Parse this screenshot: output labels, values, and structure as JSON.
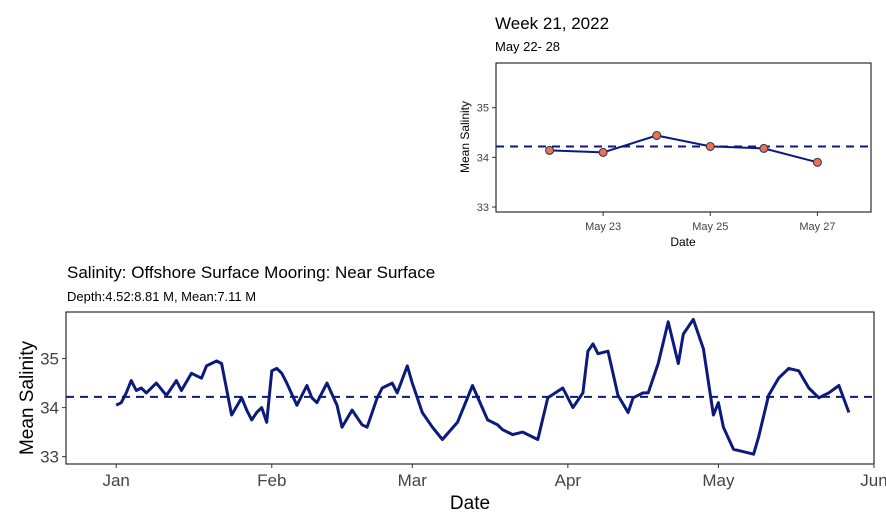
{
  "chart_data": [
    {
      "type": "line",
      "title": "Week 21, 2022",
      "subtitle": "May 22- 28",
      "xlabel": "Date",
      "ylabel": "Mean Salinity",
      "x": [
        "2022-05-22",
        "2022-05-23",
        "2022-05-24",
        "2022-05-25",
        "2022-05-26",
        "2022-05-27"
      ],
      "values": [
        34.14,
        34.1,
        34.44,
        34.22,
        34.18,
        33.9
      ],
      "reference_line": 34.22,
      "xlim": [
        "2022-05-21",
        "2022-05-28"
      ],
      "ylim": [
        32.9,
        35.9
      ],
      "x_ticks": [
        {
          "x": "2022-05-23",
          "label": "May 23"
        },
        {
          "x": "2022-05-25",
          "label": "May 25"
        },
        {
          "x": "2022-05-27",
          "label": "May 27"
        }
      ],
      "y_ticks": [
        33,
        34,
        35
      ],
      "grid": false,
      "legend": "none",
      "line_color": "#0c1a7c",
      "marker_color": "#e8705e",
      "reference_line_color": "#0c1a7c"
    },
    {
      "type": "line",
      "title": "Salinity: Offshore Surface Mooring: Near Surface",
      "subtitle": "Depth:4.52:8.81 M, Mean:7.11 M",
      "xlabel": "Date",
      "ylabel": "Mean Salinity",
      "x": [
        "2022-01-01",
        "2022-01-02",
        "2022-01-03",
        "2022-01-04",
        "2022-01-05",
        "2022-01-06",
        "2022-01-07",
        "2022-01-09",
        "2022-01-11",
        "2022-01-13",
        "2022-01-14",
        "2022-01-16",
        "2022-01-18",
        "2022-01-19",
        "2022-01-21",
        "2022-01-22",
        "2022-01-24",
        "2022-01-26",
        "2022-01-27",
        "2022-01-28",
        "2022-01-29",
        "2022-01-30",
        "2022-01-31",
        "2022-02-01",
        "2022-02-02",
        "2022-02-03",
        "2022-02-04",
        "2022-02-06",
        "2022-02-08",
        "2022-02-09",
        "2022-02-10",
        "2022-02-12",
        "2022-02-14",
        "2022-02-15",
        "2022-02-17",
        "2022-02-19",
        "2022-02-20",
        "2022-02-22",
        "2022-02-23",
        "2022-02-25",
        "2022-02-26",
        "2022-02-28",
        "2022-03-01",
        "2022-03-03",
        "2022-03-05",
        "2022-03-07",
        "2022-03-10",
        "2022-03-13",
        "2022-03-16",
        "2022-03-18",
        "2022-03-19",
        "2022-03-21",
        "2022-03-23",
        "2022-03-26",
        "2022-03-28",
        "2022-03-31",
        "2022-04-02",
        "2022-04-04",
        "2022-04-05",
        "2022-04-06",
        "2022-04-07",
        "2022-04-09",
        "2022-04-11",
        "2022-04-13",
        "2022-04-14",
        "2022-04-16",
        "2022-04-17",
        "2022-04-19",
        "2022-04-21",
        "2022-04-23",
        "2022-04-24",
        "2022-04-26",
        "2022-04-28",
        "2022-04-30",
        "2022-05-01",
        "2022-05-02",
        "2022-05-04",
        "2022-05-06",
        "2022-05-08",
        "2022-05-09",
        "2022-05-11",
        "2022-05-13",
        "2022-05-15",
        "2022-05-17",
        "2022-05-19",
        "2022-05-21",
        "2022-05-23",
        "2022-05-25",
        "2022-05-27"
      ],
      "values": [
        34.05,
        34.1,
        34.3,
        34.55,
        34.35,
        34.4,
        34.3,
        34.5,
        34.25,
        34.55,
        34.35,
        34.7,
        34.6,
        34.85,
        34.95,
        34.9,
        33.85,
        34.2,
        33.95,
        33.75,
        33.9,
        34.0,
        33.7,
        34.75,
        34.8,
        34.7,
        34.5,
        34.05,
        34.45,
        34.2,
        34.1,
        34.5,
        34.05,
        33.6,
        33.95,
        33.65,
        33.6,
        34.2,
        34.4,
        34.5,
        34.3,
        34.85,
        34.5,
        33.9,
        33.6,
        33.35,
        33.7,
        34.45,
        33.75,
        33.65,
        33.55,
        33.45,
        33.5,
        33.35,
        34.2,
        34.4,
        34.0,
        34.3,
        35.15,
        35.3,
        35.1,
        35.15,
        34.25,
        33.9,
        34.2,
        34.3,
        34.3,
        34.9,
        35.75,
        34.9,
        35.5,
        35.8,
        35.2,
        33.85,
        34.1,
        33.6,
        33.15,
        33.1,
        33.05,
        33.4,
        34.25,
        34.6,
        34.8,
        34.75,
        34.4,
        34.2,
        34.3,
        34.45,
        33.9
      ],
      "reference_line": 34.22,
      "xlim": [
        "2021-12-22",
        "2022-06-01"
      ],
      "ylim": [
        32.85,
        35.95
      ],
      "x_ticks": [
        {
          "x": "2022-01-01",
          "label": "Jan"
        },
        {
          "x": "2022-02-01",
          "label": "Feb"
        },
        {
          "x": "2022-03-01",
          "label": "Mar"
        },
        {
          "x": "2022-04-01",
          "label": "Apr"
        },
        {
          "x": "2022-05-01",
          "label": "May"
        },
        {
          "x": "2022-06-01",
          "label": "Jun"
        }
      ],
      "y_ticks": [
        33,
        34,
        35
      ],
      "grid": false,
      "legend": "none",
      "line_color": "#0c1a7c",
      "reference_line_color": "#0c1a7c"
    }
  ]
}
